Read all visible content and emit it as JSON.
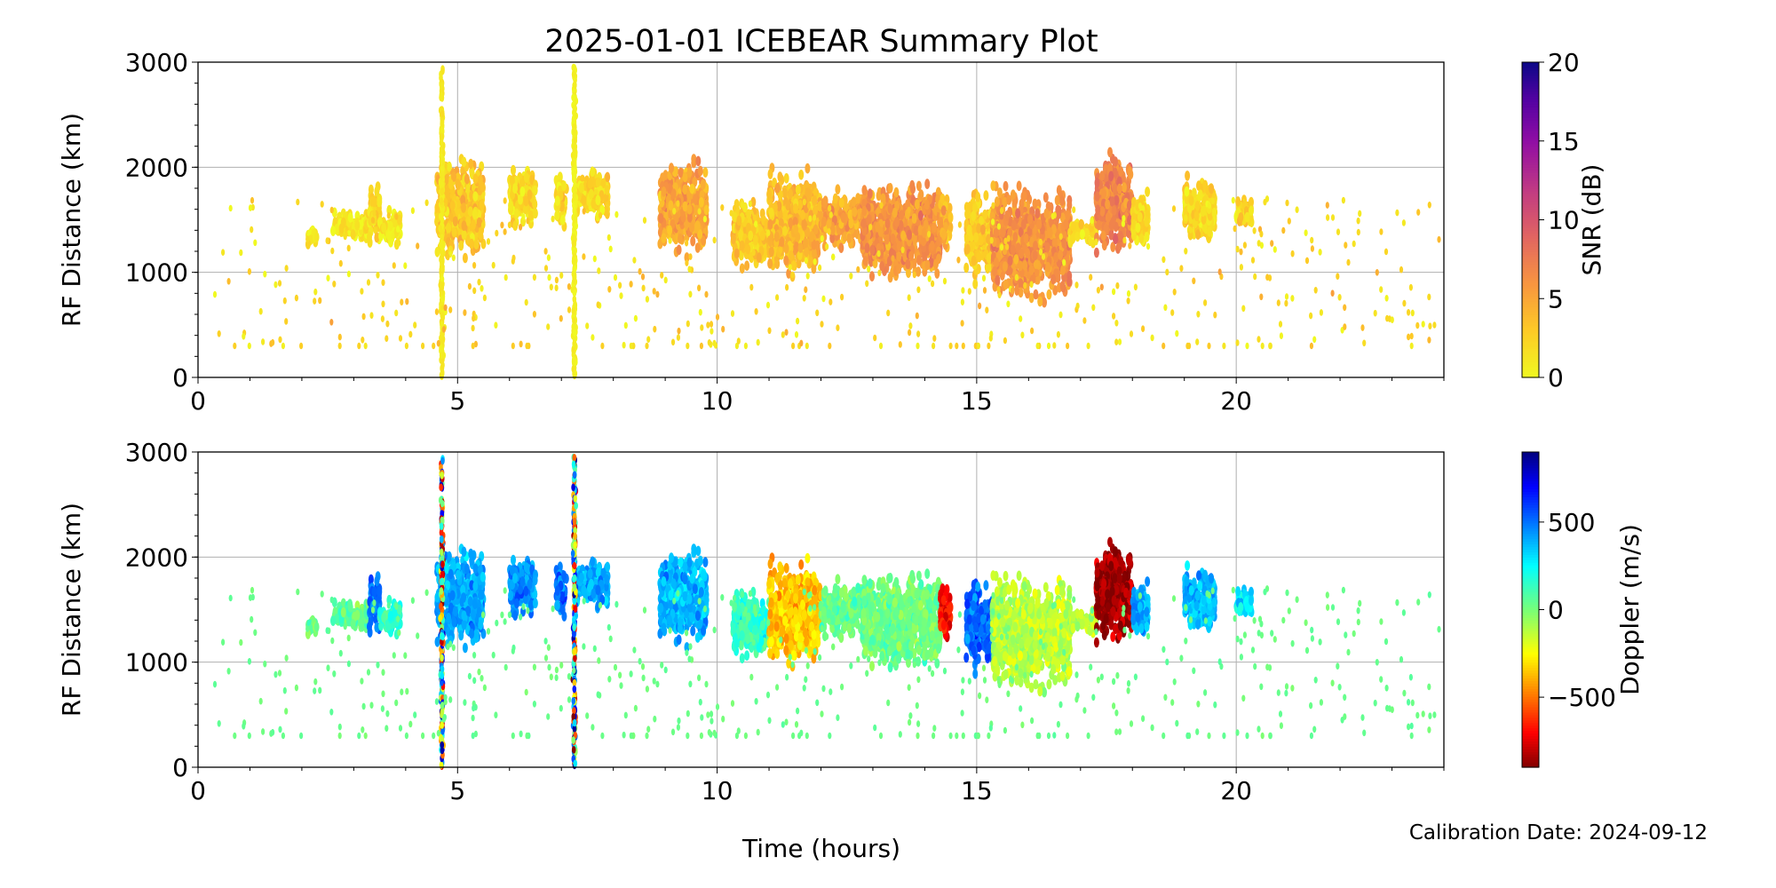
{
  "title": "2025-01-01 ICEBEAR Summary Plot",
  "footer": {
    "calibration": "Calibration Date: 2024-09-12"
  },
  "chart_data": [
    {
      "type": "scatter",
      "panel": "snr",
      "xlabel": "Time (hours)",
      "ylabel": "RF Distance (km)",
      "xlim": [
        0,
        24
      ],
      "ylim": [
        0,
        3000
      ],
      "xticks": [
        0,
        5,
        10,
        15,
        20
      ],
      "yticks": [
        0,
        1000,
        2000,
        3000
      ],
      "grid": true,
      "colorbar": {
        "label": "SNR (dB)",
        "range": [
          0,
          20
        ],
        "ticks": [
          0,
          5,
          10,
          15,
          20
        ],
        "colormap": "plasma_r"
      }
    },
    {
      "type": "scatter",
      "panel": "doppler",
      "xlabel": "Time (hours)",
      "ylabel": "RF Distance (km)",
      "xlim": [
        0,
        24
      ],
      "ylim": [
        0,
        3000
      ],
      "xticks": [
        0,
        5,
        10,
        15,
        20
      ],
      "yticks": [
        0,
        1000,
        2000,
        3000
      ],
      "grid": true,
      "colorbar": {
        "label": "Doppler (m/s)",
        "range": [
          -900,
          900
        ],
        "ticks": [
          -500,
          0,
          500
        ],
        "tick_labels": [
          "−500",
          "0",
          "500"
        ],
        "colormap": "jet"
      }
    }
  ],
  "echo_clusters": [
    {
      "t": [
        2.1,
        2.3
      ],
      "r": [
        1250,
        1450
      ],
      "doppler": 0,
      "snr": 1
    },
    {
      "t": [
        2.6,
        3.3
      ],
      "r": [
        1300,
        1600
      ],
      "doppler": 60,
      "snr": 1
    },
    {
      "t": [
        3.3,
        3.5
      ],
      "r": [
        1250,
        1950
      ],
      "doppler": 520,
      "snr": 2
    },
    {
      "t": [
        3.5,
        3.9
      ],
      "r": [
        1250,
        1600
      ],
      "doppler": 150,
      "snr": 1
    },
    {
      "t": [
        4.6,
        5.5
      ],
      "r": [
        1100,
        2100
      ],
      "doppler": 400,
      "snr": 3
    },
    {
      "t": [
        6.0,
        6.5
      ],
      "r": [
        1400,
        2050
      ],
      "doppler": 450,
      "snr": 2
    },
    {
      "t": [
        6.9,
        7.1
      ],
      "r": [
        1400,
        1950
      ],
      "doppler": 500,
      "snr": 2
    },
    {
      "t": [
        7.3,
        7.9
      ],
      "r": [
        1500,
        2000
      ],
      "doppler": 400,
      "snr": 2
    },
    {
      "t": [
        8.9,
        9.8
      ],
      "r": [
        1150,
        2100
      ],
      "doppler": 380,
      "snr": 5
    },
    {
      "t": [
        10.3,
        11.0
      ],
      "r": [
        1000,
        1700
      ],
      "doppler": 150,
      "snr": 3
    },
    {
      "t": [
        11.0,
        12.0
      ],
      "r": [
        900,
        2000
      ],
      "doppler": -350,
      "snr": 4
    },
    {
      "t": [
        12.0,
        12.8
      ],
      "r": [
        1200,
        1800
      ],
      "doppler": 50,
      "snr": 5
    },
    {
      "t": [
        12.8,
        14.3
      ],
      "r": [
        900,
        1900
      ],
      "doppler": 20,
      "snr": 6
    },
    {
      "t": [
        14.3,
        14.5
      ],
      "r": [
        1200,
        1750
      ],
      "doppler": -700,
      "snr": 4
    },
    {
      "t": [
        14.8,
        15.3
      ],
      "r": [
        900,
        1800
      ],
      "doppler": 520,
      "snr": 3
    },
    {
      "t": [
        15.3,
        16.8
      ],
      "r": [
        700,
        1850
      ],
      "doppler": -120,
      "snr": 6
    },
    {
      "t": [
        16.8,
        17.3
      ],
      "r": [
        1250,
        1500
      ],
      "doppler": -100,
      "snr": 2
    },
    {
      "t": [
        17.3,
        18.0
      ],
      "r": [
        1150,
        2150
      ],
      "doppler": -850,
      "snr": 7
    },
    {
      "t": [
        18.0,
        18.3
      ],
      "r": [
        1250,
        1800
      ],
      "doppler": 400,
      "snr": 2
    },
    {
      "t": [
        19.0,
        19.6
      ],
      "r": [
        1250,
        1950
      ],
      "doppler": 380,
      "snr": 2
    },
    {
      "t": [
        20.0,
        20.3
      ],
      "r": [
        1400,
        1750
      ],
      "doppler": 300,
      "snr": 2
    }
  ],
  "vertical_streaks": [
    {
      "t": 4.7,
      "r": [
        0,
        2950
      ],
      "doppler_spread": 900,
      "snr": 1
    },
    {
      "t": 7.25,
      "r": [
        0,
        2950
      ],
      "doppler_spread": 900,
      "snr": 0.5
    }
  ],
  "sparse_scatter": {
    "t": [
      0.3,
      24
    ],
    "r": [
      300,
      1700
    ],
    "count": 500,
    "doppler": 30,
    "snr": 2
  }
}
